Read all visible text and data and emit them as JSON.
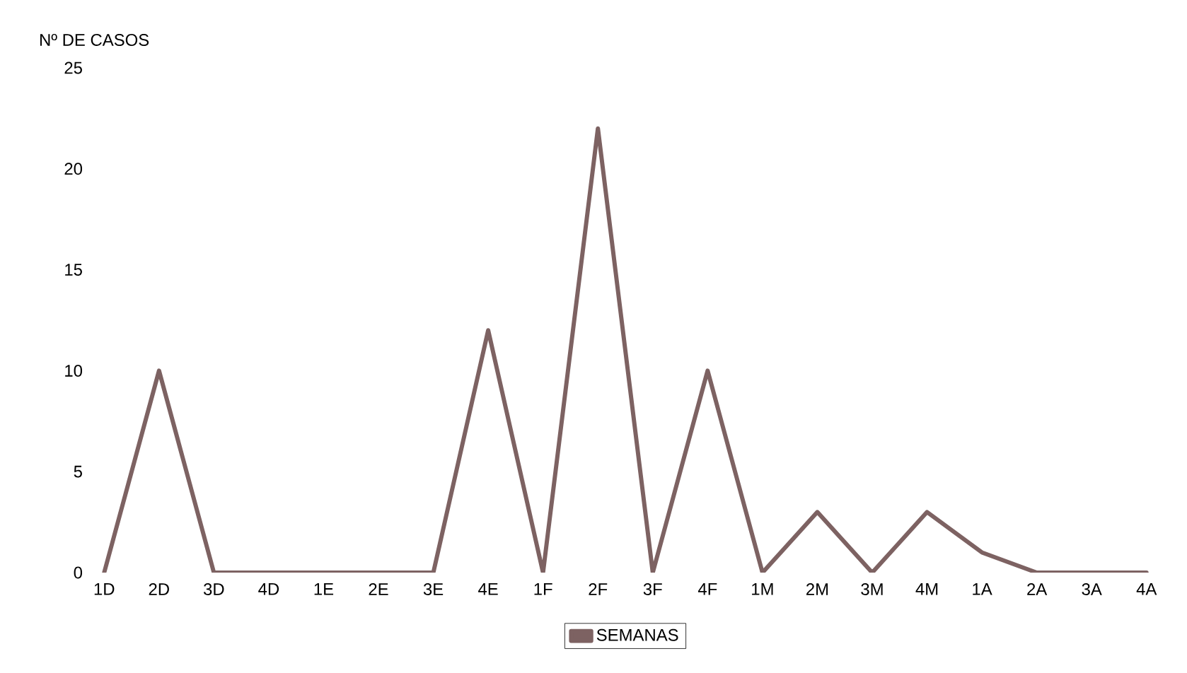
{
  "chart_data": {
    "type": "line",
    "ylabel": "Nº DE CASOS",
    "categories": [
      "1D",
      "2D",
      "3D",
      "4D",
      "1E",
      "2E",
      "3E",
      "4E",
      "1F",
      "2F",
      "3F",
      "4F",
      "1M",
      "2M",
      "3M",
      "4M",
      "1A",
      "2A",
      "3A",
      "4A"
    ],
    "series": [
      {
        "name": "SEMANAS",
        "color": "#7d6262",
        "values": [
          0,
          10,
          0,
          0,
          0,
          0,
          0,
          12,
          0,
          22,
          0,
          10,
          0,
          3,
          0,
          3,
          1,
          0,
          0,
          0
        ]
      }
    ],
    "ylim": [
      0,
      25
    ],
    "yticks": [
      0,
      5,
      10,
      15,
      20,
      25
    ],
    "legend": "bottom"
  }
}
